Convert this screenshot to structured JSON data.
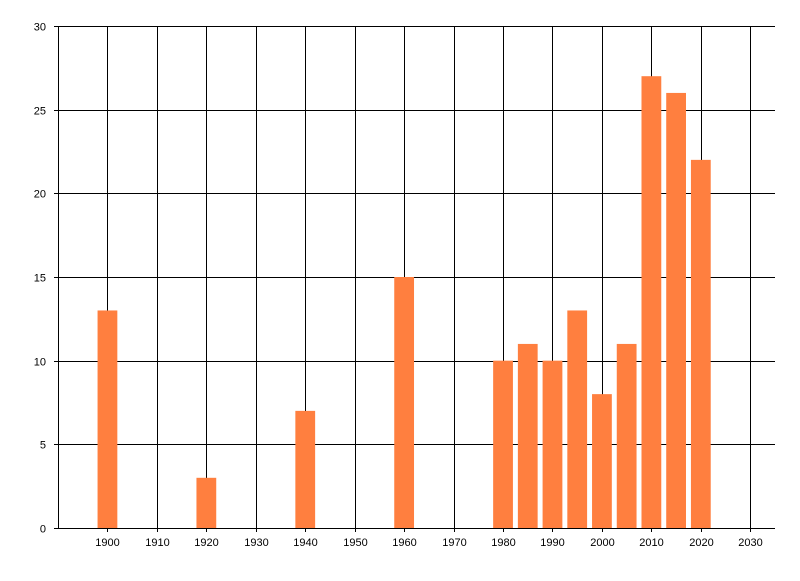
{
  "chart_data": {
    "type": "bar",
    "title": "",
    "xlabel": "",
    "ylabel": "",
    "x": [
      1900,
      1920,
      1940,
      1960,
      1980,
      1985,
      1990,
      1995,
      2000,
      2005,
      2010,
      2015,
      2020
    ],
    "values": [
      13,
      3,
      7,
      15,
      10,
      11,
      10,
      13,
      8,
      11,
      27,
      26,
      22
    ],
    "xlim": [
      1890,
      2035
    ],
    "ylim": [
      0,
      30
    ],
    "xticks": [
      1900,
      1910,
      1920,
      1930,
      1940,
      1950,
      1960,
      1970,
      1980,
      1990,
      2000,
      2010,
      2020,
      2030
    ],
    "yticks": [
      0,
      5,
      10,
      15,
      20,
      25,
      30
    ],
    "bar_width_years": 4,
    "bar_color": "#FF7F3F",
    "grid": true,
    "legend": "none"
  }
}
